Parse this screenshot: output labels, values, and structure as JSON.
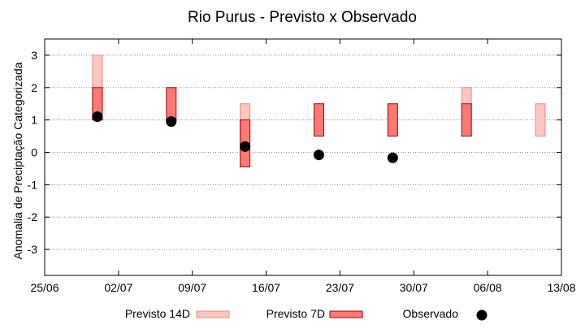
{
  "chart_data": {
    "type": "scatter",
    "title": "Rio Purus - Previsto x Observado",
    "xlabel": "",
    "ylabel": "Anomalia de Preciptação Categorizada",
    "x_axis": {
      "type": "date",
      "min": "2025-06-25",
      "max": "2025-08-13",
      "tick_labels": [
        "25/06",
        "02/07",
        "09/07",
        "16/07",
        "23/07",
        "30/07",
        "06/08",
        "13/08"
      ],
      "tick_dates": [
        "2025-06-25",
        "2025-07-02",
        "2025-07-09",
        "2025-07-16",
        "2025-07-23",
        "2025-07-30",
        "2025-08-06",
        "2025-08-13"
      ]
    },
    "y_axis": {
      "min": -3.8,
      "max": 3.5,
      "ticks": [
        -3,
        -2,
        -1,
        0,
        1,
        2,
        3
      ]
    },
    "grid": true,
    "legend_position": "bottom",
    "series": [
      {
        "name": "Previsto 14D",
        "kind": "range",
        "fill": "#f9c6c2",
        "stroke": "#f08a80",
        "points": [
          {
            "x": "2025-06-30",
            "low": 1.0,
            "high": 3.0
          },
          {
            "x": "2025-07-14",
            "low": 0.5,
            "high": 1.5
          },
          {
            "x": "2025-08-04",
            "low": 1.0,
            "high": 2.0
          },
          {
            "x": "2025-08-11",
            "low": 0.5,
            "high": 1.5
          }
        ]
      },
      {
        "name": "Previsto 7D",
        "kind": "range",
        "fill": "#f97a74",
        "stroke": "#b00000",
        "points": [
          {
            "x": "2025-06-30",
            "low": 1.0,
            "high": 2.0
          },
          {
            "x": "2025-07-07",
            "low": 1.0,
            "high": 2.0
          },
          {
            "x": "2025-07-14",
            "low": -0.45,
            "high": 1.0
          },
          {
            "x": "2025-07-21",
            "low": 0.5,
            "high": 1.5
          },
          {
            "x": "2025-07-28",
            "low": 0.5,
            "high": 1.5
          },
          {
            "x": "2025-08-04",
            "low": 0.5,
            "high": 1.5
          }
        ]
      },
      {
        "name": "Observado",
        "kind": "point",
        "color": "#000000",
        "points": [
          {
            "x": "2025-06-30",
            "y": 1.1
          },
          {
            "x": "2025-07-07",
            "y": 0.95
          },
          {
            "x": "2025-07-14",
            "y": 0.18
          },
          {
            "x": "2025-07-21",
            "y": -0.08
          },
          {
            "x": "2025-07-28",
            "y": -0.17
          }
        ]
      }
    ]
  }
}
